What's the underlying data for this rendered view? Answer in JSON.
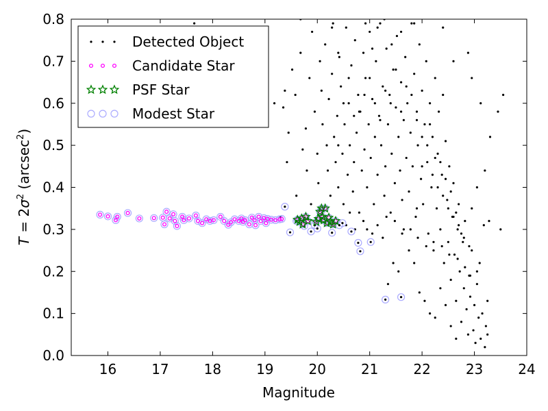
{
  "chart_data": {
    "type": "scatter",
    "xlabel": "Magnitude",
    "ylabel_main": "T",
    "ylabel_eq": " = 2",
    "ylabel_sigma": "σ",
    "ylabel_sup": "2",
    "ylabel_paren_open": " (arcsec",
    "ylabel_paren_close": ")",
    "xlim": [
      15.3,
      24.0
    ],
    "ylim": [
      0.0,
      0.8
    ],
    "xticks": [
      16,
      17,
      18,
      19,
      20,
      21,
      22,
      23,
      24
    ],
    "yticks": [
      0.0,
      0.1,
      0.2,
      0.3,
      0.4,
      0.5,
      0.6,
      0.7,
      0.8
    ],
    "grid": false,
    "legend_placement": "top-left",
    "colors": {
      "detected": "#000000",
      "candidate": "#ff00ff",
      "psf": "#008000",
      "modest": "#aaaaff"
    },
    "legend": [
      {
        "key": "detected",
        "label": "Detected Object"
      },
      {
        "key": "candidate",
        "label": "Candidate Star"
      },
      {
        "key": "psf",
        "label": "PSF Star"
      },
      {
        "key": "modest",
        "label": "Modest Star"
      }
    ],
    "series": {
      "candidate": [
        [
          15.85,
          0.335
        ],
        [
          16.0,
          0.331
        ],
        [
          16.15,
          0.322
        ],
        [
          16.18,
          0.33
        ],
        [
          16.38,
          0.339
        ],
        [
          16.6,
          0.326
        ],
        [
          16.88,
          0.327
        ],
        [
          17.05,
          0.328
        ],
        [
          17.08,
          0.312
        ],
        [
          17.12,
          0.342
        ],
        [
          17.18,
          0.326
        ],
        [
          17.25,
          0.336
        ],
        [
          17.28,
          0.32
        ],
        [
          17.32,
          0.308
        ],
        [
          17.42,
          0.33
        ],
        [
          17.45,
          0.322
        ],
        [
          17.55,
          0.326
        ],
        [
          17.68,
          0.333
        ],
        [
          17.72,
          0.32
        ],
        [
          17.8,
          0.315
        ],
        [
          17.88,
          0.324
        ],
        [
          17.95,
          0.32
        ],
        [
          18.02,
          0.322
        ],
        [
          18.15,
          0.33
        ],
        [
          18.22,
          0.32
        ],
        [
          18.3,
          0.311
        ],
        [
          18.35,
          0.317
        ],
        [
          18.42,
          0.324
        ],
        [
          18.5,
          0.32
        ],
        [
          18.55,
          0.326
        ],
        [
          18.58,
          0.318
        ],
        [
          18.62,
          0.322
        ],
        [
          18.7,
          0.312
        ],
        [
          18.75,
          0.328
        ],
        [
          18.8,
          0.322
        ],
        [
          18.82,
          0.31
        ],
        [
          18.88,
          0.33
        ],
        [
          18.92,
          0.32
        ],
        [
          18.98,
          0.327
        ],
        [
          19.02,
          0.315
        ],
        [
          19.05,
          0.325
        ],
        [
          19.12,
          0.323
        ],
        [
          19.2,
          0.322
        ],
        [
          19.28,
          0.324
        ],
        [
          19.32,
          0.325
        ]
      ],
      "psf": [
        [
          19.62,
          0.323
        ],
        [
          19.66,
          0.318
        ],
        [
          19.7,
          0.326
        ],
        [
          19.72,
          0.312
        ],
        [
          19.78,
          0.33
        ],
        [
          19.82,
          0.32
        ],
        [
          19.98,
          0.318
        ],
        [
          20.02,
          0.325
        ],
        [
          20.05,
          0.342
        ],
        [
          20.08,
          0.35
        ],
        [
          20.1,
          0.33
        ],
        [
          20.12,
          0.322
        ],
        [
          20.15,
          0.35
        ],
        [
          20.18,
          0.315
        ],
        [
          20.22,
          0.328
        ],
        [
          20.25,
          0.318
        ],
        [
          20.3,
          0.312
        ],
        [
          20.35,
          0.32
        ]
      ],
      "modest_only": [
        [
          19.38,
          0.354
        ],
        [
          19.48,
          0.293
        ],
        [
          19.6,
          0.32
        ],
        [
          19.75,
          0.308
        ],
        [
          19.88,
          0.295
        ],
        [
          19.95,
          0.31
        ],
        [
          20.0,
          0.302
        ],
        [
          20.28,
          0.292
        ],
        [
          20.42,
          0.31
        ],
        [
          20.48,
          0.315
        ],
        [
          20.65,
          0.295
        ],
        [
          20.78,
          0.268
        ],
        [
          20.82,
          0.248
        ],
        [
          21.02,
          0.27
        ],
        [
          21.3,
          0.133
        ],
        [
          21.6,
          0.139
        ]
      ],
      "detected": [
        [
          19.3,
          0.33
        ],
        [
          19.35,
          0.59
        ],
        [
          19.42,
          0.46
        ],
        [
          19.45,
          0.53
        ],
        [
          19.52,
          0.68
        ],
        [
          19.58,
          0.62
        ],
        [
          19.6,
          0.38
        ],
        [
          19.68,
          0.72
        ],
        [
          19.72,
          0.49
        ],
        [
          19.78,
          0.54
        ],
        [
          19.8,
          0.44
        ],
        [
          19.85,
          0.66
        ],
        [
          19.88,
          0.36
        ],
        [
          19.9,
          0.77
        ],
        [
          19.95,
          0.58
        ],
        [
          20.0,
          0.48
        ],
        [
          20.02,
          0.41
        ],
        [
          20.05,
          0.7
        ],
        [
          20.08,
          0.63
        ],
        [
          20.1,
          0.55
        ],
        [
          20.12,
          0.35
        ],
        [
          20.15,
          0.74
        ],
        [
          20.18,
          0.5
        ],
        [
          20.2,
          0.44
        ],
        [
          20.22,
          0.61
        ],
        [
          20.25,
          0.38
        ],
        [
          20.28,
          0.67
        ],
        [
          20.3,
          0.79
        ],
        [
          20.32,
          0.52
        ],
        [
          20.35,
          0.46
        ],
        [
          20.38,
          0.57
        ],
        [
          20.4,
          0.4
        ],
        [
          20.42,
          0.71
        ],
        [
          20.45,
          0.64
        ],
        [
          20.48,
          0.48
        ],
        [
          20.5,
          0.36
        ],
        [
          20.52,
          0.55
        ],
        [
          20.55,
          0.78
        ],
        [
          20.58,
          0.43
        ],
        [
          20.6,
          0.6
        ],
        [
          20.62,
          0.5
        ],
        [
          20.65,
          0.69
        ],
        [
          20.68,
          0.39
        ],
        [
          20.7,
          0.46
        ],
        [
          20.72,
          0.75
        ],
        [
          20.75,
          0.53
        ],
        [
          20.78,
          0.62
        ],
        [
          20.8,
          0.34
        ],
        [
          20.82,
          0.58
        ],
        [
          20.85,
          0.44
        ],
        [
          20.88,
          0.72
        ],
        [
          20.9,
          0.49
        ],
        [
          20.92,
          0.66
        ],
        [
          20.95,
          0.4
        ],
        [
          20.98,
          0.55
        ],
        [
          21.0,
          0.77
        ],
        [
          21.02,
          0.47
        ],
        [
          21.05,
          0.61
        ],
        [
          21.08,
          0.36
        ],
        [
          21.1,
          0.52
        ],
        [
          21.12,
          0.7
        ],
        [
          21.15,
          0.43
        ],
        [
          21.18,
          0.57
        ],
        [
          21.2,
          0.79
        ],
        [
          21.22,
          0.5
        ],
        [
          21.25,
          0.64
        ],
        [
          21.28,
          0.38
        ],
        [
          21.3,
          0.45
        ],
        [
          21.32,
          0.73
        ],
        [
          21.35,
          0.55
        ],
        [
          21.38,
          0.62
        ],
        [
          21.4,
          0.34
        ],
        [
          21.42,
          0.48
        ],
        [
          21.45,
          0.68
        ],
        [
          21.48,
          0.41
        ],
        [
          21.5,
          0.59
        ],
        [
          21.52,
          0.76
        ],
        [
          21.55,
          0.52
        ],
        [
          21.58,
          0.44
        ],
        [
          21.6,
          0.65
        ],
        [
          21.62,
          0.37
        ],
        [
          21.65,
          0.56
        ],
        [
          21.68,
          0.71
        ],
        [
          21.7,
          0.47
        ],
        [
          21.72,
          0.6
        ],
        [
          21.75,
          0.39
        ],
        [
          21.78,
          0.53
        ],
        [
          21.8,
          0.79
        ],
        [
          21.82,
          0.45
        ],
        [
          21.85,
          0.67
        ],
        [
          21.88,
          0.33
        ],
        [
          21.9,
          0.58
        ],
        [
          21.92,
          0.5
        ],
        [
          21.95,
          0.74
        ],
        [
          21.98,
          0.42
        ],
        [
          22.0,
          0.63
        ],
        [
          22.02,
          0.36
        ],
        [
          22.05,
          0.55
        ],
        [
          22.08,
          0.7
        ],
        [
          22.1,
          0.46
        ],
        [
          22.12,
          0.29
        ],
        [
          22.15,
          0.6
        ],
        [
          22.18,
          0.4
        ],
        [
          22.2,
          0.52
        ],
        [
          22.22,
          0.25
        ],
        [
          22.25,
          0.66
        ],
        [
          22.28,
          0.35
        ],
        [
          22.3,
          0.48
        ],
        [
          22.32,
          0.58
        ],
        [
          22.35,
          0.3
        ],
        [
          22.38,
          0.43
        ],
        [
          22.4,
          0.62
        ],
        [
          22.42,
          0.22
        ],
        [
          22.45,
          0.51
        ],
        [
          22.48,
          0.37
        ],
        [
          22.5,
          0.27
        ],
        [
          22.52,
          0.45
        ],
        [
          22.55,
          0.18
        ],
        [
          22.58,
          0.33
        ],
        [
          22.6,
          0.41
        ],
        [
          22.62,
          0.24
        ],
        [
          22.65,
          0.13
        ],
        [
          22.68,
          0.3
        ],
        [
          22.7,
          0.36
        ],
        [
          22.72,
          0.2
        ],
        [
          22.75,
          0.08
        ],
        [
          22.78,
          0.27
        ],
        [
          22.8,
          0.16
        ],
        [
          22.82,
          0.32
        ],
        [
          22.85,
          0.11
        ],
        [
          22.88,
          0.05
        ],
        [
          22.9,
          0.19
        ],
        [
          22.92,
          0.14
        ],
        [
          22.95,
          0.25
        ],
        [
          22.98,
          0.06
        ],
        [
          23.0,
          0.12
        ],
        [
          23.02,
          0.03
        ],
        [
          23.05,
          0.17
        ],
        [
          23.08,
          0.09
        ],
        [
          23.1,
          0.22
        ],
        [
          23.12,
          0.04
        ],
        [
          23.15,
          0.1
        ],
        [
          23.18,
          0.31
        ],
        [
          23.2,
          0.02
        ],
        [
          23.22,
          0.07
        ],
        [
          23.25,
          0.13
        ],
        [
          23.28,
          0.32
        ],
        [
          23.3,
          0.52
        ],
        [
          23.5,
          0.3
        ],
        [
          23.25,
          0.05
        ],
        [
          23.12,
          0.6
        ],
        [
          22.95,
          0.66
        ],
        [
          22.6,
          0.7
        ],
        [
          21.9,
          0.35
        ],
        [
          21.65,
          0.3
        ],
        [
          21.55,
          0.2
        ],
        [
          21.45,
          0.22
        ],
        [
          21.35,
          0.17
        ],
        [
          21.25,
          0.28
        ],
        [
          21.15,
          0.31
        ],
        [
          21.05,
          0.29
        ],
        [
          20.95,
          0.3
        ],
        [
          21.75,
          0.25
        ],
        [
          21.85,
          0.22
        ],
        [
          21.95,
          0.15
        ],
        [
          22.05,
          0.13
        ],
        [
          22.15,
          0.1
        ],
        [
          22.25,
          0.09
        ],
        [
          22.35,
          0.16
        ],
        [
          22.45,
          0.12
        ],
        [
          22.55,
          0.07
        ],
        [
          22.65,
          0.04
        ],
        [
          20.62,
          0.34
        ],
        [
          20.55,
          0.31
        ],
        [
          20.72,
          0.3
        ],
        [
          20.88,
          0.32
        ],
        [
          21.32,
          0.33
        ],
        [
          21.48,
          0.32
        ],
        [
          21.62,
          0.29
        ],
        [
          21.78,
          0.3
        ],
        [
          21.92,
          0.28
        ],
        [
          22.08,
          0.26
        ],
        [
          22.22,
          0.27
        ],
        [
          22.38,
          0.26
        ],
        [
          22.52,
          0.24
        ],
        [
          22.68,
          0.23
        ],
        [
          22.82,
          0.21
        ],
        [
          22.92,
          0.19
        ],
        [
          23.05,
          0.2
        ],
        [
          22.0,
          0.45
        ],
        [
          22.1,
          0.5
        ],
        [
          22.2,
          0.43
        ],
        [
          22.3,
          0.4
        ],
        [
          22.4,
          0.38
        ],
        [
          22.5,
          0.35
        ],
        [
          22.6,
          0.33
        ],
        [
          22.7,
          0.31
        ],
        [
          22.8,
          0.28
        ],
        [
          22.9,
          0.26
        ],
        [
          22.15,
          0.55
        ],
        [
          22.25,
          0.47
        ],
        [
          22.35,
          0.46
        ],
        [
          22.45,
          0.42
        ],
        [
          22.55,
          0.39
        ],
        [
          22.65,
          0.34
        ],
        [
          22.75,
          0.29
        ],
        [
          21.4,
          0.6
        ],
        [
          21.5,
          0.68
        ],
        [
          21.6,
          0.58
        ],
        [
          21.7,
          0.64
        ],
        [
          21.8,
          0.62
        ],
        [
          21.9,
          0.56
        ],
        [
          22.0,
          0.52
        ],
        [
          20.8,
          0.58
        ],
        [
          20.9,
          0.62
        ],
        [
          21.0,
          0.66
        ],
        [
          21.1,
          0.6
        ],
        [
          21.2,
          0.56
        ],
        [
          21.3,
          0.63
        ],
        [
          20.4,
          0.5
        ],
        [
          20.5,
          0.6
        ],
        [
          20.6,
          0.66
        ],
        [
          20.7,
          0.57
        ],
        [
          17.65,
          0.79
        ],
        [
          19.38,
          0.63
        ],
        [
          19.18,
          0.6
        ],
        [
          23.45,
          0.58
        ],
        [
          23.55,
          0.62
        ],
        [
          22.88,
          0.72
        ],
        [
          21.85,
          0.79
        ],
        [
          22.4,
          0.78
        ],
        [
          20.28,
          0.78
        ],
        [
          20.4,
          0.72
        ],
        [
          21.05,
          0.73
        ],
        [
          21.15,
          0.78
        ],
        [
          21.28,
          0.8
        ],
        [
          21.42,
          0.74
        ],
        [
          21.6,
          0.77
        ],
        [
          19.68,
          0.8
        ],
        [
          20.92,
          0.79
        ],
        [
          23.2,
          0.44
        ],
        [
          23.05,
          0.4
        ],
        [
          22.95,
          0.35
        ]
      ]
    }
  }
}
